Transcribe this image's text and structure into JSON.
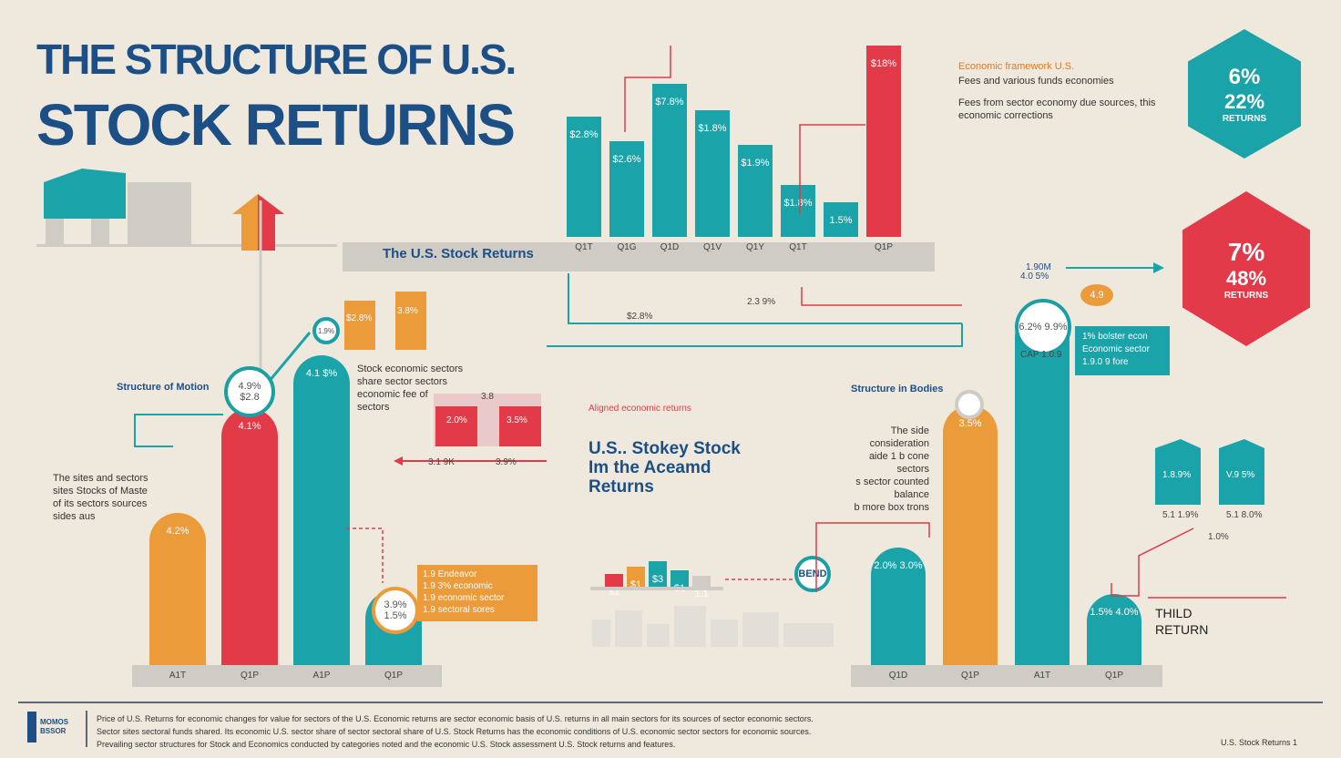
{
  "header": {
    "title_line1": "THE STRUCTURE OF U.S.",
    "title_line2": "STOCK RETURNS"
  },
  "top_panel": {
    "shelf_label": "The U.S. Stock Returns",
    "bars": [
      {
        "label": "$2.8%",
        "tick": "Q1T",
        "pct": 0.63,
        "color": "#1aa3a8"
      },
      {
        "label": "$2.6%",
        "tick": "Q1G",
        "pct": 0.5,
        "color": "#1aa3a8"
      },
      {
        "label": "$7.8%",
        "tick": "Q1D",
        "pct": 0.8,
        "color": "#1aa3a8"
      },
      {
        "label": "$1.8%",
        "tick": "Q1V",
        "pct": 0.66,
        "color": "#1aa3a8"
      },
      {
        "label": "$1.9%",
        "tick": "Q1Y",
        "pct": 0.48,
        "color": "#1aa3a8"
      },
      {
        "label": "$1.8%",
        "tick": "Q1T",
        "pct": 0.27,
        "color": "#1aa3a8"
      },
      {
        "label": "1.5%",
        "tick": "",
        "pct": 0.18,
        "color": "#1aa3a8"
      },
      {
        "label": "$18%",
        "tick": "Q1P",
        "pct": 1.0,
        "color": "#e23a48"
      }
    ],
    "annot_left": "$2.8%",
    "annot_mid": "2.3 9%",
    "note_title": "Economic framework U.S.",
    "note_line1": "Fees and various funds economies",
    "note_line2": "Fees from sector economy due sources, this",
    "note_line3": "economic corrections"
  },
  "hex_top": {
    "v1": "6%",
    "v2": "22%",
    "v3": "RETURNS",
    "color": "#1aa3a8"
  },
  "hex_mid": {
    "v1": "7%",
    "v2": "48%",
    "v3": "RETURNS",
    "color": "#e23a48"
  },
  "left_panel": {
    "section_label": "Structure of Motion",
    "side_note": [
      "The sites and sectors",
      "sites Stocks of Maste",
      "of its sectors sources",
      "sides aus"
    ],
    "mid_note": [
      "Stock economic sectors",
      "share sector sectors",
      "economic fee of",
      "sectors"
    ],
    "bars": [
      {
        "tick": "A1T",
        "label": "4.2%",
        "pct": 0.49,
        "color": "#eb9b3a"
      },
      {
        "tick": "Q1P",
        "label": "4.1%",
        "pct": 0.83,
        "color": "#e23a48"
      },
      {
        "tick": "A1P",
        "label": "4.1 $%",
        "pct": 1.0,
        "color": "#1aa3a8"
      },
      {
        "tick": "Q1P",
        "label": "1.5%",
        "pct": 0.24,
        "color": "#1aa3a8"
      }
    ],
    "circle_label": "4.9% $2.8",
    "small_circle": "1.9%",
    "bottom_circle": "3.9% 1.5%",
    "mini_pair": [
      "$2.8%",
      "3.8%"
    ],
    "red_pair": [
      "2.0%",
      "3.5%"
    ],
    "red_pair_top": "3.8",
    "arrow_labels": [
      "3.1 9K",
      "3.9%"
    ],
    "orange_box": [
      "1.9 Endeavor",
      "1.9 3% economic",
      "1.9 economic sector",
      "1.9 sectoral sores"
    ]
  },
  "center": {
    "red_label": "Aligned economic returns",
    "heading1": "U.S.. Stokey Stock",
    "heading2": "Im the Aceamd",
    "heading3": "Returns",
    "mini_bars": [
      {
        "label": "$1",
        "pct": 0.35,
        "color": "#e23a48"
      },
      {
        "label": "$1",
        "pct": 0.55,
        "color": "#eb9b3a"
      },
      {
        "label": "$3",
        "pct": 0.7,
        "color": "#1aa3a8"
      },
      {
        "label": "$1",
        "pct": 0.45,
        "color": "#1aa3a8"
      },
      {
        "label": "1.1",
        "pct": 0.3,
        "color": "#cfcbc5"
      }
    ],
    "pin_label": "BEND"
  },
  "right_panel": {
    "section_label": "Structure in Bodies",
    "arrow_label1": "1.90M",
    "arrow_label2": "4.0 5%",
    "note_box": [
      "1% bolster econ",
      "Economic sector",
      "1.9.0 9 fore"
    ],
    "circle_top": "6.2% 9.9%",
    "circle_top_caption": "CAP 1.0.9",
    "badge": "4.9",
    "side_note": [
      "The side consideration",
      "aide 1 b cone sectors",
      "s sector counted balance",
      "b more box trons"
    ],
    "bars": [
      {
        "tick": "Q1D",
        "label": "2.0% 3.0%",
        "pct": 0.33,
        "color": "#1aa3a8"
      },
      {
        "tick": "Q1P",
        "label": "3.5%",
        "pct": 0.73,
        "color": "#eb9b3a"
      },
      {
        "tick": "A1T",
        "label": "",
        "pct": 1.0,
        "color": "#1aa3a8"
      },
      {
        "tick": "Q1P",
        "label": "1.5% 4.0%",
        "pct": 0.2,
        "color": "#1aa3a8"
      }
    ],
    "teal_pair": [
      "1.8.9%",
      "V.9 5%"
    ],
    "teal_pair_sub": [
      "5.1 1.9%",
      "5.1 8.0%"
    ],
    "arrow_end": "1.0%",
    "return_label1": "THILD",
    "return_label2": "RETURN"
  },
  "footer": {
    "logo_text": "MOMOS BSSOR",
    "line1": "Price of U.S. Returns for economic changes for value for sectors of the U.S. Economic returns are sector economic basis of U.S. returns in all main sectors for its sources of sector economic sectors.",
    "line2": "Sector sites sectoral funds shared. Its economic U.S. sector share of sector sectoral share of U.S. Stock Returns has the economic conditions of U.S. economic sector sectors for economic sources.",
    "line3": "Prevailing sector structures for Stock and Economics conducted by categories noted and the economic U.S. Stock assessment U.S. Stock returns and features.",
    "credit": "U.S. Stock Returns 1"
  }
}
